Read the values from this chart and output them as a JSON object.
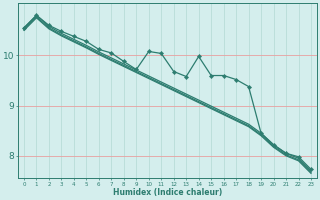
{
  "title": "",
  "xlabel": "Humidex (Indice chaleur)",
  "bg_color": "#d4eeed",
  "line_color": "#2d7d70",
  "grid_color_h": "#e8a0a0",
  "grid_color_v": "#b8ddd8",
  "xlim": [
    -0.5,
    23.5
  ],
  "ylim": [
    7.55,
    11.05
  ],
  "yticks": [
    8,
    9,
    10
  ],
  "xtick_labels": [
    "0",
    "1",
    "2",
    "3",
    "4",
    "5",
    "6",
    "7",
    "8",
    "9",
    "10",
    "11",
    "12",
    "13",
    "14",
    "15",
    "16",
    "17",
    "18",
    "19",
    "20",
    "21",
    "22",
    "23"
  ],
  "series_data": [
    [
      10.55,
      10.8,
      10.6,
      10.48,
      10.38,
      10.28,
      10.12,
      10.05,
      9.88,
      9.72,
      10.08,
      10.04,
      9.68,
      9.58,
      9.98,
      9.6,
      9.6,
      9.52,
      9.38,
      8.45,
      8.22,
      8.05,
      7.98,
      7.73
    ],
    [
      10.55,
      10.8,
      10.58,
      10.44,
      10.32,
      10.2,
      10.07,
      9.95,
      9.83,
      9.71,
      9.59,
      9.47,
      9.35,
      9.23,
      9.11,
      8.99,
      8.87,
      8.75,
      8.63,
      8.45,
      8.22,
      8.05,
      7.95,
      7.7
    ],
    [
      10.52,
      10.77,
      10.55,
      10.41,
      10.29,
      10.17,
      10.04,
      9.92,
      9.8,
      9.68,
      9.56,
      9.44,
      9.32,
      9.2,
      9.08,
      8.96,
      8.84,
      8.72,
      8.6,
      8.42,
      8.19,
      8.02,
      7.92,
      7.67
    ],
    [
      10.5,
      10.75,
      10.53,
      10.39,
      10.27,
      10.15,
      10.02,
      9.9,
      9.78,
      9.66,
      9.54,
      9.42,
      9.3,
      9.18,
      9.06,
      8.94,
      8.82,
      8.7,
      8.58,
      8.4,
      8.17,
      8.0,
      7.9,
      7.65
    ]
  ],
  "has_marker": [
    true,
    false,
    false,
    false
  ],
  "marker_style": "D",
  "markersize": 2.2,
  "linewidth": 0.9
}
